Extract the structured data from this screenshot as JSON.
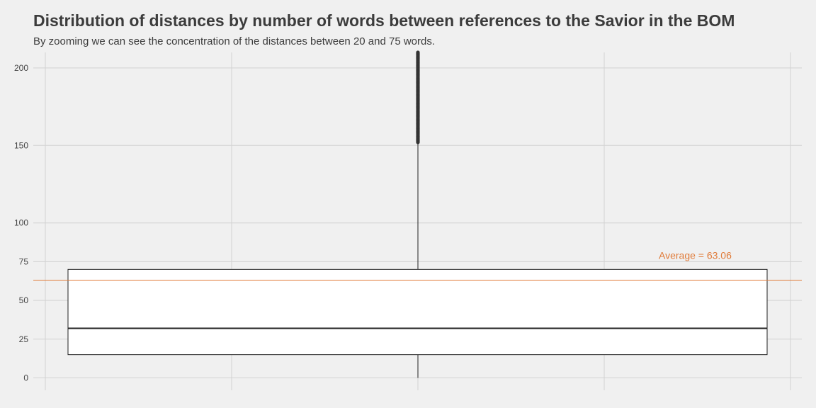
{
  "chart_data": {
    "type": "boxplot",
    "title": "Distribution of distances by number of words between references to the Savior in the BOM",
    "subtitle": "By zooming we can see the concentration of the distances between 20 and 75 words.",
    "xlabel": "",
    "ylabel": "",
    "ylim": [
      -8,
      210
    ],
    "y_ticks": [
      0,
      25,
      50,
      75,
      100,
      150,
      200
    ],
    "grid": true,
    "box": {
      "lower_whisker": 0,
      "q1": 15,
      "median": 32,
      "q3": 70,
      "upper_whisker": 152,
      "outliers_from": 152,
      "outliers_to": 210
    },
    "average": {
      "value": 63.06,
      "label": "Average = 63.06",
      "color": "#e07b39"
    },
    "colors": {
      "background": "#f0f0f0",
      "grid": "#d2d2d2",
      "box_fill": "#ffffff",
      "box_stroke": "#222222",
      "outlier": "#333333"
    }
  }
}
